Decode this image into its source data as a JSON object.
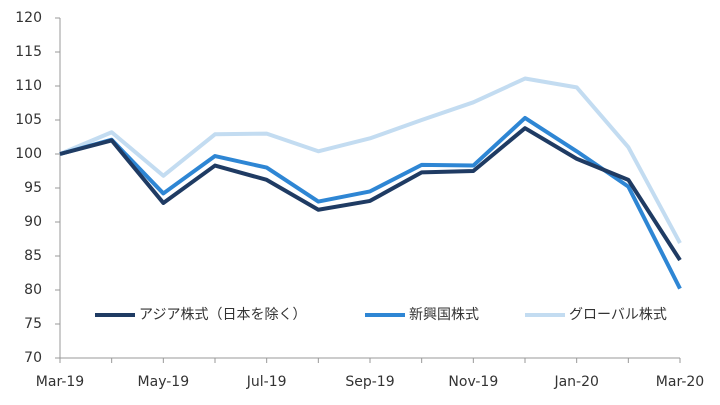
{
  "chart_data": {
    "type": "line",
    "categories": [
      "Mar-19",
      null,
      "May-19",
      null,
      "Jul-19",
      null,
      "Sep-19",
      null,
      "Nov-19",
      null,
      "Jan-20",
      null,
      "Mar-20"
    ],
    "series": [
      {
        "name": "アジア株式（日本を除く）",
        "color": "#1f3b63",
        "values": [
          100,
          102,
          92.8,
          98.3,
          96.2,
          91.8,
          93.1,
          97.3,
          97.5,
          103.8,
          99.3,
          96.2,
          84.4
        ]
      },
      {
        "name": "新興国株式",
        "color": "#2e86d4",
        "values": [
          100,
          102.1,
          94.2,
          99.7,
          98.0,
          93.0,
          94.5,
          98.4,
          98.3,
          105.3,
          100.4,
          95.2,
          80.2
        ]
      },
      {
        "name": "グローバル株式",
        "color": "#c3dcf1",
        "values": [
          100,
          103.2,
          96.8,
          102.9,
          103.0,
          100.4,
          102.3,
          105.0,
          107.6,
          111.1,
          109.8,
          101.0,
          86.9
        ]
      }
    ],
    "ylim": [
      70,
      120
    ],
    "yticks": [
      70,
      75,
      80,
      85,
      90,
      95,
      100,
      105,
      110,
      115,
      120
    ],
    "legend": "lower center"
  }
}
